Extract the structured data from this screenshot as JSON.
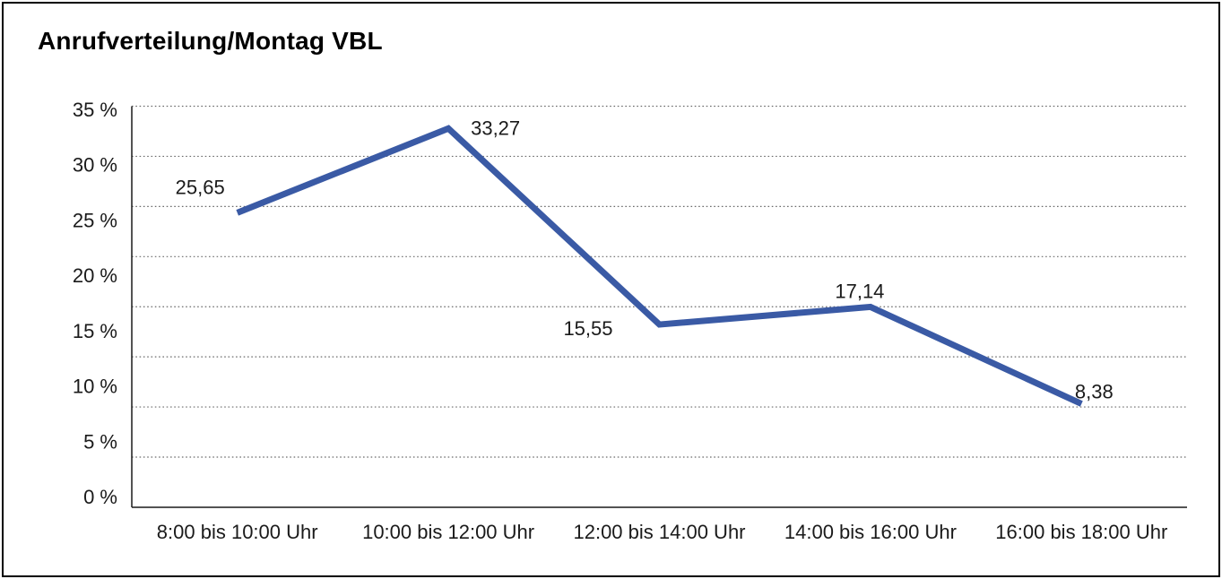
{
  "title": "Anrufverteilung/Montag VBL",
  "colors": {
    "line": "#3A5AA5",
    "grid": "#6b6b6b",
    "axis": "#1a1a1a",
    "text": "#1a1a1a",
    "border": "#000000",
    "background": "#ffffff"
  },
  "chart_data": {
    "type": "line",
    "title": "Anrufverteilung/Montag VBL",
    "categories": [
      "8:00 bis 10:00 Uhr",
      "10:00 bis 12:00 Uhr",
      "12:00 bis 14:00 Uhr",
      "14:00 bis 16:00 Uhr",
      "16:00 bis 18:00 Uhr"
    ],
    "values": [
      25.65,
      33.27,
      15.55,
      17.14,
      8.38
    ],
    "value_labels": [
      "25,65",
      "33,27",
      "15,55",
      "17,14",
      "8,38"
    ],
    "unit": "%",
    "xlabel": "",
    "ylabel": "",
    "ylim": [
      0,
      35
    ],
    "ytick_step": 5,
    "ytick_labels": [
      "35 %",
      "30 %",
      "25 %",
      "20 %",
      "15 %",
      "10 %",
      "5 %",
      "0 %"
    ],
    "grid": "horizontal-dotted",
    "legend": "none"
  }
}
